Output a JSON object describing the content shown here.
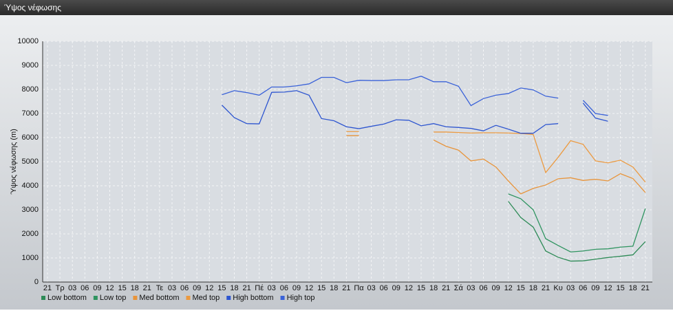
{
  "chart_data": {
    "type": "line",
    "title": "Ύψος νέφωσης",
    "ylabel": "Ύψος νέφωσης (m)",
    "categories": [
      "21",
      "Τρ",
      "03",
      "06",
      "09",
      "12",
      "15",
      "18",
      "21",
      "Τε",
      "03",
      "06",
      "09",
      "12",
      "15",
      "18",
      "21",
      "Πέ",
      "03",
      "06",
      "09",
      "12",
      "15",
      "18",
      "21",
      "Πα",
      "03",
      "06",
      "09",
      "12",
      "15",
      "18",
      "21",
      "Σά",
      "03",
      "06",
      "09",
      "12",
      "15",
      "18",
      "21",
      "Κυ",
      "03",
      "06",
      "09",
      "12",
      "15",
      "18",
      "21"
    ],
    "ylim": [
      0,
      10000
    ],
    "yticks": [
      0,
      1000,
      2000,
      3000,
      4000,
      5000,
      6000,
      7000,
      8000,
      9000,
      10000
    ],
    "grid": true,
    "legend": "bottom-left",
    "series": [
      {
        "name": "Low bottom",
        "color": "#2e8b57",
        "values": [
          null,
          null,
          null,
          null,
          null,
          null,
          null,
          null,
          null,
          null,
          null,
          null,
          null,
          null,
          null,
          null,
          null,
          null,
          null,
          null,
          null,
          null,
          null,
          null,
          null,
          null,
          null,
          null,
          null,
          null,
          null,
          null,
          null,
          null,
          null,
          null,
          null,
          3350,
          2680,
          2280,
          1290,
          1030,
          870,
          880,
          950,
          1020,
          1070,
          1130,
          1680
        ]
      },
      {
        "name": "Low top",
        "color": "#2f9460",
        "values": [
          null,
          null,
          null,
          null,
          null,
          null,
          null,
          null,
          null,
          null,
          null,
          null,
          null,
          null,
          null,
          null,
          null,
          null,
          null,
          null,
          null,
          null,
          null,
          null,
          null,
          null,
          null,
          null,
          null,
          null,
          null,
          null,
          null,
          null,
          null,
          null,
          null,
          3660,
          3460,
          3000,
          1800,
          1520,
          1250,
          1290,
          1360,
          1380,
          1450,
          1490,
          3050
        ]
      },
      {
        "name": "Med bottom",
        "color": "#e8943a",
        "values": [
          null,
          null,
          null,
          null,
          null,
          null,
          null,
          null,
          null,
          null,
          null,
          null,
          null,
          null,
          null,
          null,
          null,
          null,
          null,
          null,
          null,
          null,
          null,
          null,
          6080,
          6080,
          null,
          null,
          null,
          null,
          null,
          5900,
          5640,
          5480,
          5030,
          5110,
          4780,
          4200,
          3660,
          3890,
          4030,
          4290,
          4330,
          4220,
          4270,
          4200,
          4500,
          4300,
          3720
        ]
      },
      {
        "name": "Med top",
        "color": "#ec9a40",
        "values": [
          null,
          null,
          null,
          null,
          null,
          null,
          null,
          null,
          null,
          null,
          null,
          null,
          null,
          null,
          null,
          null,
          null,
          null,
          null,
          null,
          null,
          null,
          null,
          null,
          6250,
          6250,
          null,
          null,
          null,
          null,
          null,
          6230,
          6230,
          6210,
          6190,
          6200,
          6200,
          6190,
          6170,
          6130,
          4550,
          5180,
          5870,
          5720,
          5030,
          4950,
          5060,
          4780,
          4150
        ]
      },
      {
        "name": "High bottom",
        "color": "#2d55d0",
        "values": [
          null,
          null,
          null,
          null,
          null,
          null,
          null,
          null,
          null,
          null,
          null,
          null,
          null,
          null,
          7350,
          6830,
          6580,
          6570,
          7880,
          7890,
          7950,
          7760,
          6790,
          6700,
          6450,
          6370,
          6470,
          6560,
          6740,
          6720,
          6490,
          6580,
          6450,
          6420,
          6380,
          6280,
          6510,
          6350,
          6180,
          6180,
          6540,
          6580,
          null,
          7430,
          6810,
          6680,
          null,
          null,
          null
        ]
      },
      {
        "name": "High top",
        "color": "#3a62d8",
        "values": [
          null,
          null,
          null,
          null,
          null,
          null,
          null,
          null,
          null,
          null,
          null,
          null,
          null,
          null,
          7780,
          7950,
          7870,
          7760,
          8100,
          8100,
          8150,
          8230,
          8500,
          8500,
          8280,
          8380,
          8370,
          8370,
          8400,
          8400,
          8550,
          8320,
          8320,
          8130,
          7330,
          7620,
          7760,
          7830,
          8060,
          7980,
          7720,
          7640,
          null,
          7550,
          7000,
          6920,
          null,
          null,
          null
        ]
      }
    ]
  }
}
